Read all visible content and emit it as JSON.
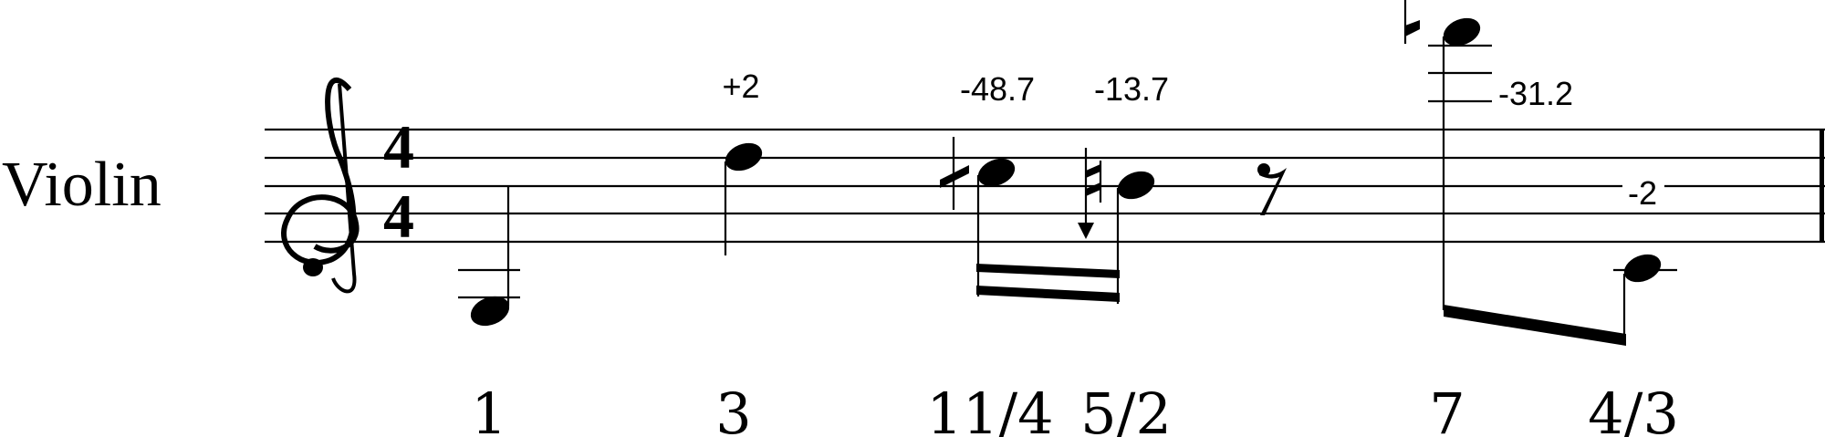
{
  "instrument": "Violin",
  "time_signature": {
    "numerator": "4",
    "denominator": "4"
  },
  "clef": "treble-clef",
  "notes": [
    {
      "ratio": "1",
      "cents": ""
    },
    {
      "ratio": "3",
      "cents": "+2"
    },
    {
      "ratio": "11/4",
      "cents": "-48.7"
    },
    {
      "ratio": "5/2",
      "cents": "-13.7"
    },
    {
      "ratio": "7",
      "cents": "-31.2"
    },
    {
      "ratio": "4/3",
      "cents": "-2"
    }
  ],
  "rest": "eighth-rest"
}
